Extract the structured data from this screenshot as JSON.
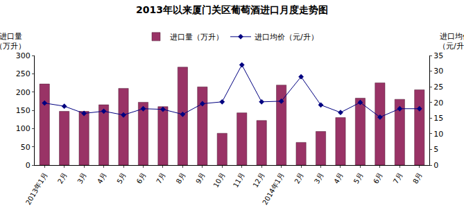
{
  "chart_data": {
    "type": "bar",
    "title": "2013年以来厦门关区葡萄酒进口月度走势图",
    "y_label": "进口量\n（万升）",
    "y2_label": "进口均价\n（元/升）",
    "categories": [
      "2013年1月",
      "2月",
      "3月",
      "4月",
      "5月",
      "6月",
      "7月",
      "8月",
      "9月",
      "10月",
      "11月",
      "12月",
      "2014年1月",
      "2月",
      "3月",
      "4月",
      "5月",
      "6月",
      "7月",
      "8月"
    ],
    "series": [
      {
        "name": "进口量（万升）",
        "type": "bar",
        "color": "#993366",
        "values": [
          222,
          147,
          147,
          165,
          210,
          172,
          160,
          268,
          214,
          87,
          143,
          122,
          219,
          62,
          92,
          130,
          183,
          225,
          180,
          206
        ]
      },
      {
        "name": "进口均价（元/升）",
        "type": "line",
        "axis": "y2",
        "color": "#000080",
        "marker": "diamond",
        "line_style": "solid",
        "values": [
          19.8,
          18.8,
          16.5,
          17.2,
          16.0,
          18.0,
          17.8,
          16.2,
          19.6,
          20.2,
          32.0,
          20.2,
          20.4,
          28.2,
          19.2,
          16.8,
          20.0,
          15.3,
          18.0,
          18.0
        ]
      }
    ],
    "ylim": [
      0,
      300
    ],
    "yticks": [
      0,
      50,
      100,
      150,
      200,
      250,
      300
    ],
    "y2lim": [
      0,
      35
    ],
    "y2ticks": [
      0,
      5,
      10,
      15,
      20,
      25,
      30,
      35
    ],
    "grid": false,
    "legend": "top"
  }
}
